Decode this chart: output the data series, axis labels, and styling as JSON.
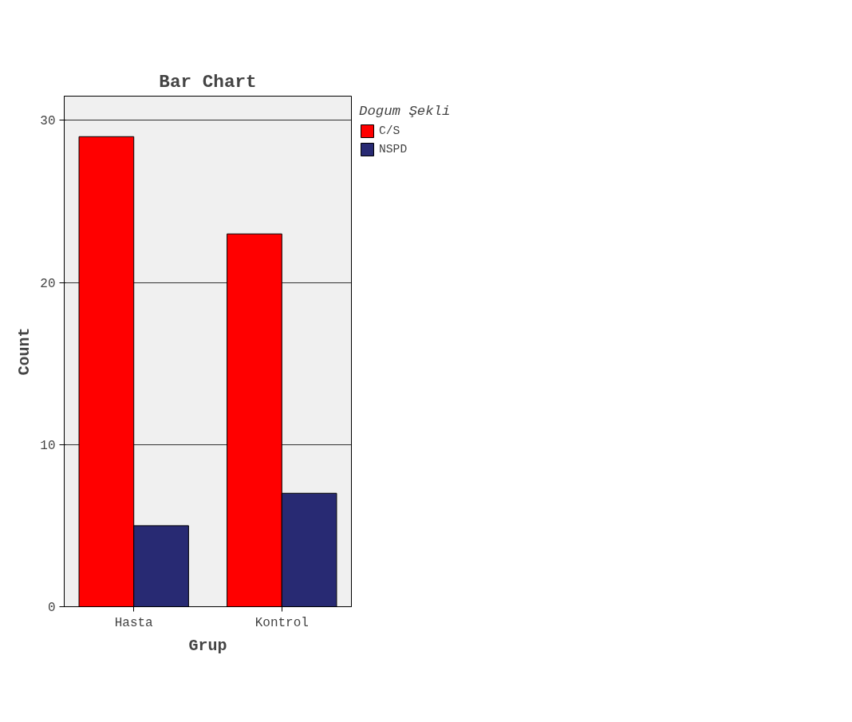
{
  "chart_data": {
    "type": "bar",
    "title": "Bar Chart",
    "xlabel": "Grup",
    "ylabel": "Count",
    "legend_title": "Dogum Şekli",
    "categories": [
      "Hasta",
      "Kontrol"
    ],
    "series": [
      {
        "name": "C/S",
        "color": "#ff0000",
        "values": [
          29,
          23
        ]
      },
      {
        "name": "NSPD",
        "color": "#282a73",
        "values": [
          5,
          7
        ]
      }
    ],
    "ylim": [
      0,
      31.5
    ],
    "yticks": [
      0,
      10,
      20,
      30
    ],
    "grid": "y",
    "legend": "top right"
  }
}
